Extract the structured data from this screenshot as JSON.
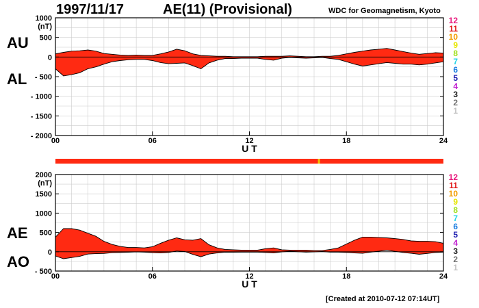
{
  "header": {
    "date": "1997/11/17",
    "title": "AE(11) (Provisional)",
    "source": "WDC for Geomagnetism, Kyoto"
  },
  "footer": {
    "created": "[Created at 2010-07-12 07:14UT]"
  },
  "colors": {
    "fill": "#ff2a12",
    "line": "#000000",
    "grid": "#cccccc",
    "bar": "#ff2a12",
    "bar_marker": "#f2c200"
  },
  "station_legend": [
    {
      "label": "12",
      "color": "#e8197d"
    },
    {
      "label": "11",
      "color": "#e01010"
    },
    {
      "label": "10",
      "color": "#f29c00"
    },
    {
      "label": "9",
      "color": "#e6e600"
    },
    {
      "label": "8",
      "color": "#a0e020"
    },
    {
      "label": "7",
      "color": "#22d3e6"
    },
    {
      "label": "6",
      "color": "#1a7de0"
    },
    {
      "label": "5",
      "color": "#2020b0"
    },
    {
      "label": "4",
      "color": "#c020d0"
    },
    {
      "label": "3",
      "color": "#202020"
    },
    {
      "label": "2",
      "color": "#707070"
    },
    {
      "label": "1",
      "color": "#c0c0c0"
    }
  ],
  "station_bar": {
    "marker_hour": 16.3
  },
  "chart_data": [
    {
      "type": "area",
      "name": "AU/AL",
      "labels": {
        "upper": "AU",
        "lower": "AL"
      },
      "unit": "(nT)",
      "xlabel": "U T",
      "xlim": [
        0,
        24
      ],
      "ylim": [
        -2000,
        1000
      ],
      "xticks": [
        "00",
        "06",
        "12",
        "18",
        "24"
      ],
      "yticks": [
        "1000",
        "500",
        "0",
        "- 500",
        "- 1000",
        "- 1500",
        "- 2000"
      ],
      "grid": true,
      "x": [
        0,
        0.5,
        1,
        1.5,
        2,
        2.5,
        3,
        3.5,
        4,
        4.5,
        5,
        5.5,
        6,
        6.5,
        7,
        7.5,
        8,
        8.5,
        9,
        9.5,
        10,
        10.5,
        11,
        11.5,
        12,
        12.5,
        13,
        13.5,
        14,
        14.5,
        15,
        15.5,
        16,
        16.5,
        17,
        17.5,
        18,
        18.5,
        19,
        19.5,
        20,
        20.5,
        21,
        21.5,
        22,
        22.5,
        23,
        23.5,
        24
      ],
      "series": [
        {
          "name": "AU",
          "values": [
            80,
            120,
            150,
            160,
            180,
            150,
            90,
            70,
            50,
            40,
            50,
            40,
            40,
            80,
            130,
            200,
            160,
            80,
            40,
            30,
            20,
            20,
            10,
            10,
            10,
            10,
            20,
            20,
            20,
            30,
            20,
            10,
            10,
            20,
            20,
            40,
            80,
            120,
            150,
            180,
            200,
            220,
            180,
            140,
            100,
            70,
            90,
            110,
            100
          ]
        },
        {
          "name": "AL",
          "values": [
            -300,
            -480,
            -450,
            -400,
            -300,
            -250,
            -180,
            -120,
            -90,
            -70,
            -60,
            -60,
            -90,
            -140,
            -170,
            -160,
            -150,
            -220,
            -300,
            -150,
            -80,
            -40,
            -40,
            -30,
            -30,
            -30,
            -60,
            -80,
            -30,
            -10,
            -20,
            -30,
            -20,
            -10,
            -40,
            -60,
            -120,
            -180,
            -230,
            -200,
            -170,
            -140,
            -160,
            -180,
            -180,
            -200,
            -180,
            -150,
            -120
          ]
        }
      ]
    },
    {
      "type": "area",
      "name": "AE/AO",
      "labels": {
        "upper": "AE",
        "lower": "AO"
      },
      "unit": "(nT)",
      "xlabel": "U T",
      "xlim": [
        0,
        24
      ],
      "ylim": [
        -500,
        2000
      ],
      "xticks": [
        "00",
        "06",
        "12",
        "18",
        "24"
      ],
      "yticks": [
        "2000",
        "1500",
        "1000",
        "500",
        "0",
        "- 500"
      ],
      "grid": true,
      "x": [
        0,
        0.5,
        1,
        1.5,
        2,
        2.5,
        3,
        3.5,
        4,
        4.5,
        5,
        5.5,
        6,
        6.5,
        7,
        7.5,
        8,
        8.5,
        9,
        9.5,
        10,
        10.5,
        11,
        11.5,
        12,
        12.5,
        13,
        13.5,
        14,
        14.5,
        15,
        15.5,
        16,
        16.5,
        17,
        17.5,
        18,
        18.5,
        19,
        19.5,
        20,
        20.5,
        21,
        21.5,
        22,
        22.5,
        23,
        23.5,
        24
      ],
      "series": [
        {
          "name": "AE",
          "values": [
            380,
            600,
            600,
            560,
            480,
            400,
            270,
            190,
            140,
            110,
            110,
            100,
            130,
            220,
            300,
            360,
            310,
            300,
            340,
            180,
            100,
            60,
            50,
            40,
            40,
            40,
            80,
            100,
            50,
            40,
            40,
            40,
            30,
            30,
            60,
            100,
            200,
            300,
            380,
            380,
            370,
            360,
            340,
            320,
            280,
            270,
            270,
            260,
            220
          ]
        },
        {
          "name": "AO",
          "values": [
            -110,
            -180,
            -150,
            -120,
            -60,
            -50,
            -45,
            -25,
            -20,
            -15,
            -5,
            -10,
            -25,
            -30,
            -20,
            20,
            5,
            -70,
            -130,
            -60,
            -30,
            -10,
            -15,
            -10,
            -10,
            -10,
            -20,
            -30,
            -5,
            10,
            0,
            -10,
            -5,
            5,
            -10,
            -10,
            -20,
            -30,
            -40,
            -10,
            15,
            40,
            10,
            -20,
            -40,
            -65,
            -45,
            -20,
            -10
          ]
        }
      ]
    }
  ]
}
